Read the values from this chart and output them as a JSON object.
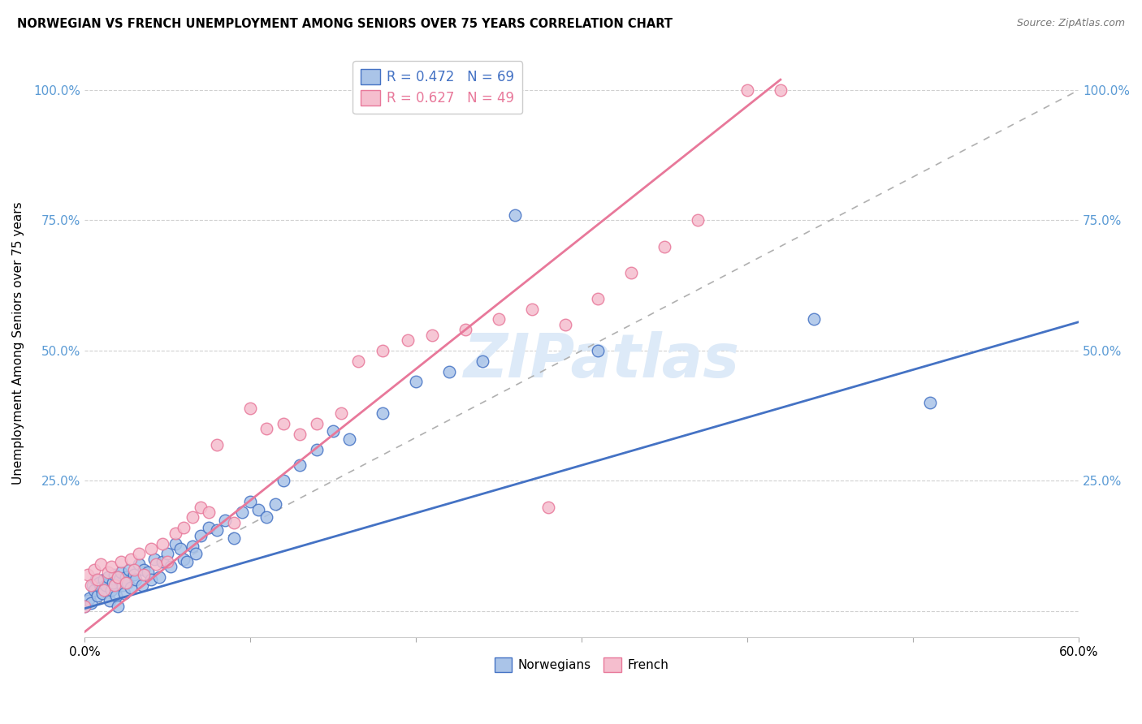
{
  "title": "NORWEGIAN VS FRENCH UNEMPLOYMENT AMONG SENIORS OVER 75 YEARS CORRELATION CHART",
  "source": "Source: ZipAtlas.com",
  "ylabel": "Unemployment Among Seniors over 75 years",
  "ytick_values": [
    0.0,
    0.25,
    0.5,
    0.75,
    1.0
  ],
  "ytick_labels": [
    "",
    "25.0%",
    "50.0%",
    "75.0%",
    "100.0%"
  ],
  "xmin": 0.0,
  "xmax": 0.6,
  "ymin": -0.05,
  "ymax": 1.08,
  "legend_norwegian": "R = 0.472   N = 69",
  "legend_french": "R = 0.627   N = 49",
  "norwegian_face_color": "#aac4e8",
  "norwegian_edge_color": "#4472C4",
  "french_face_color": "#f5bece",
  "french_edge_color": "#e8789a",
  "norwegian_line_color": "#4472C4",
  "french_line_color": "#e8789a",
  "trendline_dash_color": "#b0b0b0",
  "watermark_color": "#ddeaf8",
  "norwegian_scatter_x": [
    0.0,
    0.002,
    0.003,
    0.004,
    0.005,
    0.006,
    0.007,
    0.008,
    0.009,
    0.01,
    0.011,
    0.012,
    0.013,
    0.014,
    0.015,
    0.016,
    0.017,
    0.018,
    0.019,
    0.02,
    0.021,
    0.022,
    0.023,
    0.024,
    0.025,
    0.026,
    0.027,
    0.028,
    0.03,
    0.031,
    0.033,
    0.035,
    0.036,
    0.038,
    0.04,
    0.042,
    0.045,
    0.047,
    0.05,
    0.052,
    0.055,
    0.058,
    0.06,
    0.062,
    0.065,
    0.067,
    0.07,
    0.075,
    0.08,
    0.085,
    0.09,
    0.095,
    0.1,
    0.105,
    0.11,
    0.115,
    0.12,
    0.13,
    0.14,
    0.15,
    0.16,
    0.18,
    0.2,
    0.22,
    0.24,
    0.26,
    0.31,
    0.44,
    0.51
  ],
  "norwegian_scatter_y": [
    0.01,
    0.02,
    0.025,
    0.015,
    0.05,
    0.04,
    0.06,
    0.03,
    0.055,
    0.045,
    0.035,
    0.06,
    0.05,
    0.065,
    0.02,
    0.04,
    0.055,
    0.07,
    0.03,
    0.01,
    0.06,
    0.075,
    0.05,
    0.035,
    0.065,
    0.055,
    0.08,
    0.045,
    0.07,
    0.06,
    0.09,
    0.05,
    0.08,
    0.075,
    0.06,
    0.1,
    0.065,
    0.095,
    0.11,
    0.085,
    0.13,
    0.12,
    0.1,
    0.095,
    0.125,
    0.11,
    0.145,
    0.16,
    0.155,
    0.175,
    0.14,
    0.19,
    0.21,
    0.195,
    0.18,
    0.205,
    0.25,
    0.28,
    0.31,
    0.345,
    0.33,
    0.38,
    0.44,
    0.46,
    0.48,
    0.76,
    0.5,
    0.56,
    0.4
  ],
  "french_scatter_x": [
    0.0,
    0.002,
    0.004,
    0.006,
    0.008,
    0.01,
    0.012,
    0.014,
    0.016,
    0.018,
    0.02,
    0.022,
    0.025,
    0.028,
    0.03,
    0.033,
    0.036,
    0.04,
    0.043,
    0.047,
    0.05,
    0.055,
    0.06,
    0.065,
    0.07,
    0.075,
    0.08,
    0.09,
    0.1,
    0.11,
    0.12,
    0.13,
    0.14,
    0.155,
    0.165,
    0.18,
    0.195,
    0.21,
    0.23,
    0.25,
    0.27,
    0.29,
    0.31,
    0.33,
    0.35,
    0.37,
    0.28,
    0.4,
    0.42
  ],
  "french_scatter_y": [
    0.01,
    0.07,
    0.05,
    0.08,
    0.06,
    0.09,
    0.04,
    0.075,
    0.085,
    0.05,
    0.065,
    0.095,
    0.055,
    0.1,
    0.08,
    0.11,
    0.07,
    0.12,
    0.09,
    0.13,
    0.095,
    0.15,
    0.16,
    0.18,
    0.2,
    0.19,
    0.32,
    0.17,
    0.39,
    0.35,
    0.36,
    0.34,
    0.36,
    0.38,
    0.48,
    0.5,
    0.52,
    0.53,
    0.54,
    0.56,
    0.58,
    0.55,
    0.6,
    0.65,
    0.7,
    0.75,
    0.2,
    1.0,
    1.0
  ],
  "norwegian_trendline": [
    0.0,
    0.6
  ],
  "norwegian_trendline_y": [
    0.005,
    0.555
  ],
  "french_trendline": [
    0.0,
    0.42
  ],
  "french_trendline_y": [
    -0.04,
    1.02
  ]
}
